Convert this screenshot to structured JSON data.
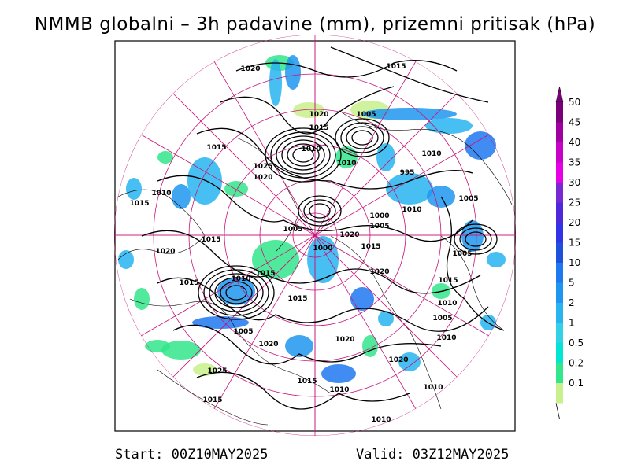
{
  "title": "NMMB globalni – 3h padavine (mm), prizemni pritisak (hPa)",
  "footer": {
    "start": "Start: 00Z10MAY2025",
    "valid": "Valid: 03Z12MAY2025"
  },
  "colorbar": {
    "levels": [
      {
        "label": "50",
        "color": "#7a007a"
      },
      {
        "label": "45",
        "color": "#a000a0"
      },
      {
        "label": "40",
        "color": "#c800c8"
      },
      {
        "label": "35",
        "color": "#e600e6"
      },
      {
        "label": "30",
        "color": "#7a28d2"
      },
      {
        "label": "25",
        "color": "#5028dc"
      },
      {
        "label": "20",
        "color": "#3232e6"
      },
      {
        "label": "15",
        "color": "#1e50dc"
      },
      {
        "label": "10",
        "color": "#1e78f0"
      },
      {
        "label": "5",
        "color": "#1e96f0"
      },
      {
        "label": "2",
        "color": "#28b4f0"
      },
      {
        "label": "1",
        "color": "#32d2e6"
      },
      {
        "label": "0.5",
        "color": "#00e6d2"
      },
      {
        "label": "0.2",
        "color": "#32e68c"
      },
      {
        "label": "0.1",
        "color": "#c8f08c"
      }
    ]
  },
  "isobar_labels": [
    "1020",
    "1015",
    "1020",
    "1005",
    "1015",
    "1010",
    "1015",
    "1010",
    "1025",
    "1020",
    "1010",
    "1010",
    "995",
    "1010",
    "1015",
    "1005",
    "1000",
    "1005",
    "1015",
    "1020",
    "1005",
    "1020",
    "1000",
    "1015",
    "1005",
    "1015",
    "1010",
    "1015",
    "1010",
    "1020",
    "1015",
    "1005",
    "1010",
    "1005",
    "1020",
    "1020",
    "1015",
    "1025",
    "1020",
    "1015",
    "1010",
    "1010",
    "1015",
    "1010"
  ]
}
